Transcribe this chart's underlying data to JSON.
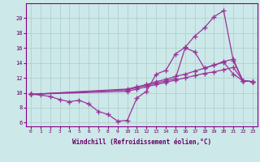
{
  "xlabel": "Windchill (Refroidissement éolien,°C)",
  "background_color": "#cce8e8",
  "line_color": "#993399",
  "grid_color": "#aacccc",
  "xlim": [
    -0.5,
    23.5
  ],
  "ylim": [
    5.5,
    22.0
  ],
  "xticks": [
    0,
    1,
    2,
    3,
    4,
    5,
    6,
    7,
    8,
    9,
    10,
    11,
    12,
    13,
    14,
    15,
    16,
    17,
    18,
    19,
    20,
    21,
    22,
    23
  ],
  "yticks": [
    6,
    8,
    10,
    12,
    14,
    16,
    18,
    20
  ],
  "line1_x": [
    0,
    1,
    2,
    3,
    4,
    5,
    6,
    7,
    8,
    9,
    10,
    11,
    12,
    13,
    14,
    15,
    16,
    17,
    18,
    19,
    20,
    21,
    22,
    23
  ],
  "line1_y": [
    9.8,
    9.7,
    9.5,
    9.1,
    8.8,
    9.0,
    8.5,
    7.5,
    7.1,
    6.2,
    6.3,
    9.3,
    10.2,
    12.5,
    13.0,
    15.2,
    16.1,
    17.6,
    18.7,
    20.2,
    21.0,
    14.3,
    11.6,
    11.5
  ],
  "line2_x": [
    0,
    10,
    11,
    12,
    13,
    14,
    15,
    16,
    17,
    18,
    19,
    20,
    21,
    22,
    23
  ],
  "line2_y": [
    9.8,
    10.2,
    10.5,
    10.8,
    11.1,
    11.4,
    11.7,
    12.0,
    12.3,
    12.6,
    12.8,
    13.1,
    13.4,
    11.6,
    11.5
  ],
  "line3_x": [
    0,
    10,
    11,
    12,
    13,
    14,
    15,
    16,
    17,
    18,
    19,
    20,
    21,
    22,
    23
  ],
  "line3_y": [
    9.8,
    10.5,
    10.8,
    11.1,
    11.5,
    11.8,
    12.2,
    12.5,
    12.9,
    13.3,
    13.7,
    14.2,
    14.5,
    11.6,
    11.5
  ],
  "line4_x": [
    0,
    10,
    11,
    12,
    13,
    14,
    15,
    16,
    17,
    18,
    19,
    20,
    21,
    22,
    23
  ],
  "line4_y": [
    9.8,
    10.4,
    10.7,
    11.0,
    11.3,
    11.6,
    11.9,
    16.0,
    15.5,
    13.3,
    13.7,
    14.1,
    12.5,
    11.6,
    11.5
  ]
}
